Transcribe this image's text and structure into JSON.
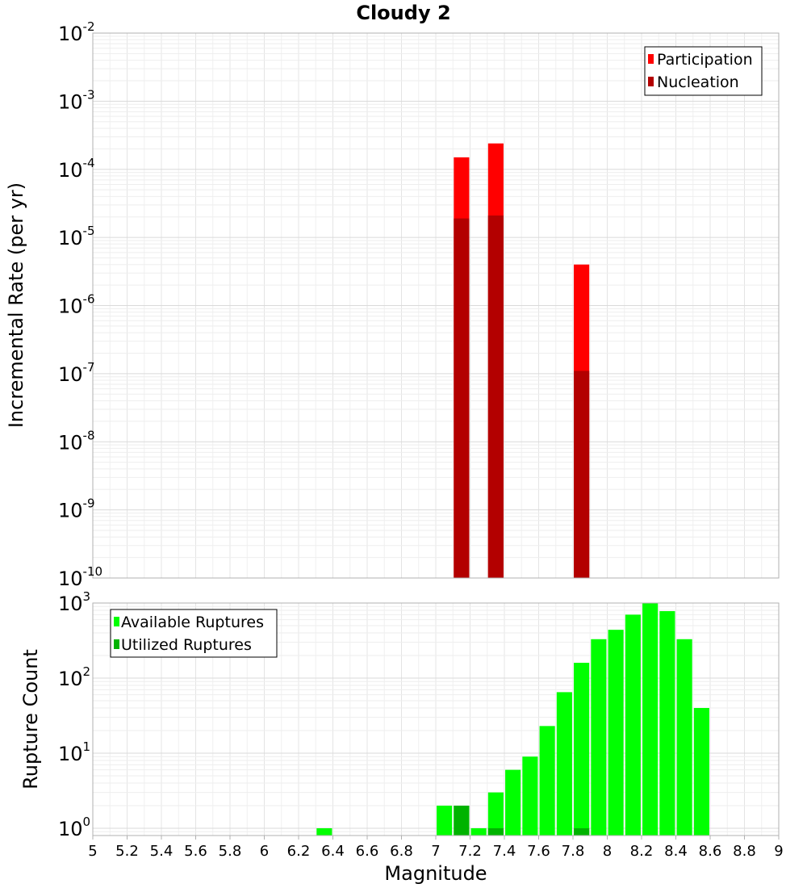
{
  "chart_data": [
    {
      "type": "bar",
      "title": "Cloudy 2",
      "ylabel": "Incremental Rate (per yr)",
      "xlabel": "",
      "yscale": "log",
      "ylim": [
        1e-10,
        0.01
      ],
      "xlim": [
        5,
        9
      ],
      "grid": true,
      "legend_position": "top-right",
      "bar_width": 0.09,
      "series": [
        {
          "name": "Participation",
          "color": "#ff0000",
          "x": [
            7.15,
            7.35,
            7.85
          ],
          "values": [
            0.00015,
            0.00024,
            4e-06
          ]
        },
        {
          "name": "Nucleation",
          "color": "#b30000",
          "x": [
            7.15,
            7.35,
            7.85
          ],
          "values": [
            1.9e-05,
            2.1e-05,
            1.1e-07
          ]
        }
      ],
      "y_tick_exponents": [
        -10,
        -9,
        -8,
        -7,
        -6,
        -5,
        -4,
        -3,
        -2
      ]
    },
    {
      "type": "bar",
      "title": "",
      "ylabel": "Rupture Count",
      "xlabel": "Magnitude",
      "yscale": "log",
      "ylim": [
        0.8,
        1000
      ],
      "xlim": [
        5,
        9
      ],
      "grid": true,
      "legend_position": "top-left",
      "bar_width": 0.09,
      "series": [
        {
          "name": "Available Ruptures",
          "color": "#00ff00",
          "x": [
            6.35,
            7.05,
            7.15,
            7.25,
            7.35,
            7.45,
            7.55,
            7.65,
            7.75,
            7.85,
            7.95,
            8.05,
            8.15,
            8.25,
            8.35,
            8.45,
            8.55
          ],
          "values": [
            1,
            2,
            2,
            1,
            3,
            6,
            9,
            23,
            65,
            160,
            330,
            440,
            700,
            1000,
            780,
            330,
            40
          ]
        },
        {
          "name": "Utilized Ruptures",
          "color": "#00b300",
          "x": [
            7.15,
            7.35,
            7.85
          ],
          "values": [
            2,
            1,
            1
          ]
        }
      ],
      "y_tick_exponents": [
        0,
        1,
        2,
        3
      ],
      "x_ticks": [
        "5",
        "5.2",
        "5.4",
        "5.6",
        "5.8",
        "6",
        "6.2",
        "6.4",
        "6.6",
        "6.8",
        "7",
        "7.2",
        "7.4",
        "7.6",
        "7.8",
        "8",
        "8.2",
        "8.4",
        "8.6",
        "8.8",
        "9"
      ]
    }
  ]
}
